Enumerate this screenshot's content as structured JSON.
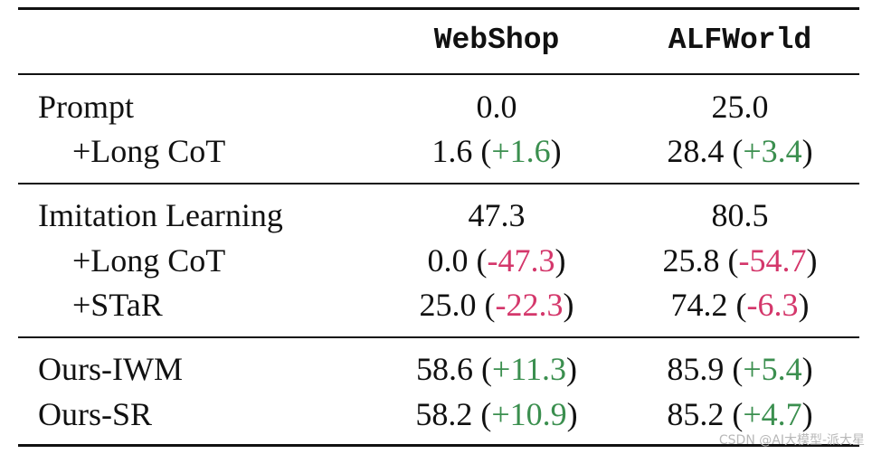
{
  "table": {
    "header": [
      "",
      "WebShop",
      "ALFWorld"
    ],
    "rows": [
      {
        "label": "Prompt",
        "indent": false,
        "cells": [
          {
            "text": [
              "0.0"
            ]
          },
          {
            "text": [
              "25.0"
            ]
          }
        ]
      },
      {
        "label": "+Long CoT",
        "indent": true,
        "cells": [
          {
            "text": [
              "1.6 (",
              "+1.6",
              ")"
            ],
            "color": "#3b8f4f"
          },
          {
            "text": [
              "28.4 (",
              "+3.4",
              ")"
            ],
            "color": "#3b8f4f"
          }
        ]
      },
      {
        "label": "Imitation Learning",
        "indent": false,
        "cells": [
          {
            "text": [
              "47.3"
            ]
          },
          {
            "text": [
              "80.5"
            ]
          }
        ]
      },
      {
        "label": "+Long CoT",
        "indent": true,
        "cells": [
          {
            "text": [
              "0.0 (",
              "-47.3",
              ")"
            ],
            "color": "#d4376b"
          },
          {
            "text": [
              "25.8 (",
              "-54.7",
              ")"
            ],
            "color": "#d4376b"
          }
        ]
      },
      {
        "label": "+STaR",
        "indent": true,
        "cells": [
          {
            "text": [
              "25.0 (",
              "-22.3",
              ")"
            ],
            "color": "#d4376b"
          },
          {
            "text": [
              "74.2 (",
              "-6.3",
              ")"
            ],
            "color": "#d4376b"
          }
        ]
      },
      {
        "label": "Ours-IWM",
        "indent": false,
        "cells": [
          {
            "text": [
              "58.6 (",
              "+11.3",
              ")"
            ],
            "color": "#3b8f4f"
          },
          {
            "text": [
              "85.9 (",
              "+5.4",
              ")"
            ],
            "color": "#3b8f4f"
          }
        ]
      },
      {
        "label": "Ours-SR",
        "indent": false,
        "cells": [
          {
            "text": [
              "58.2 (",
              "+10.9",
              ")"
            ],
            "color": "#3b8f4f"
          },
          {
            "text": [
              "85.2 (",
              "+4.7",
              ")"
            ],
            "color": "#3b8f4f"
          }
        ]
      }
    ]
  },
  "watermark": "CSDN @AI大模型-派大星"
}
